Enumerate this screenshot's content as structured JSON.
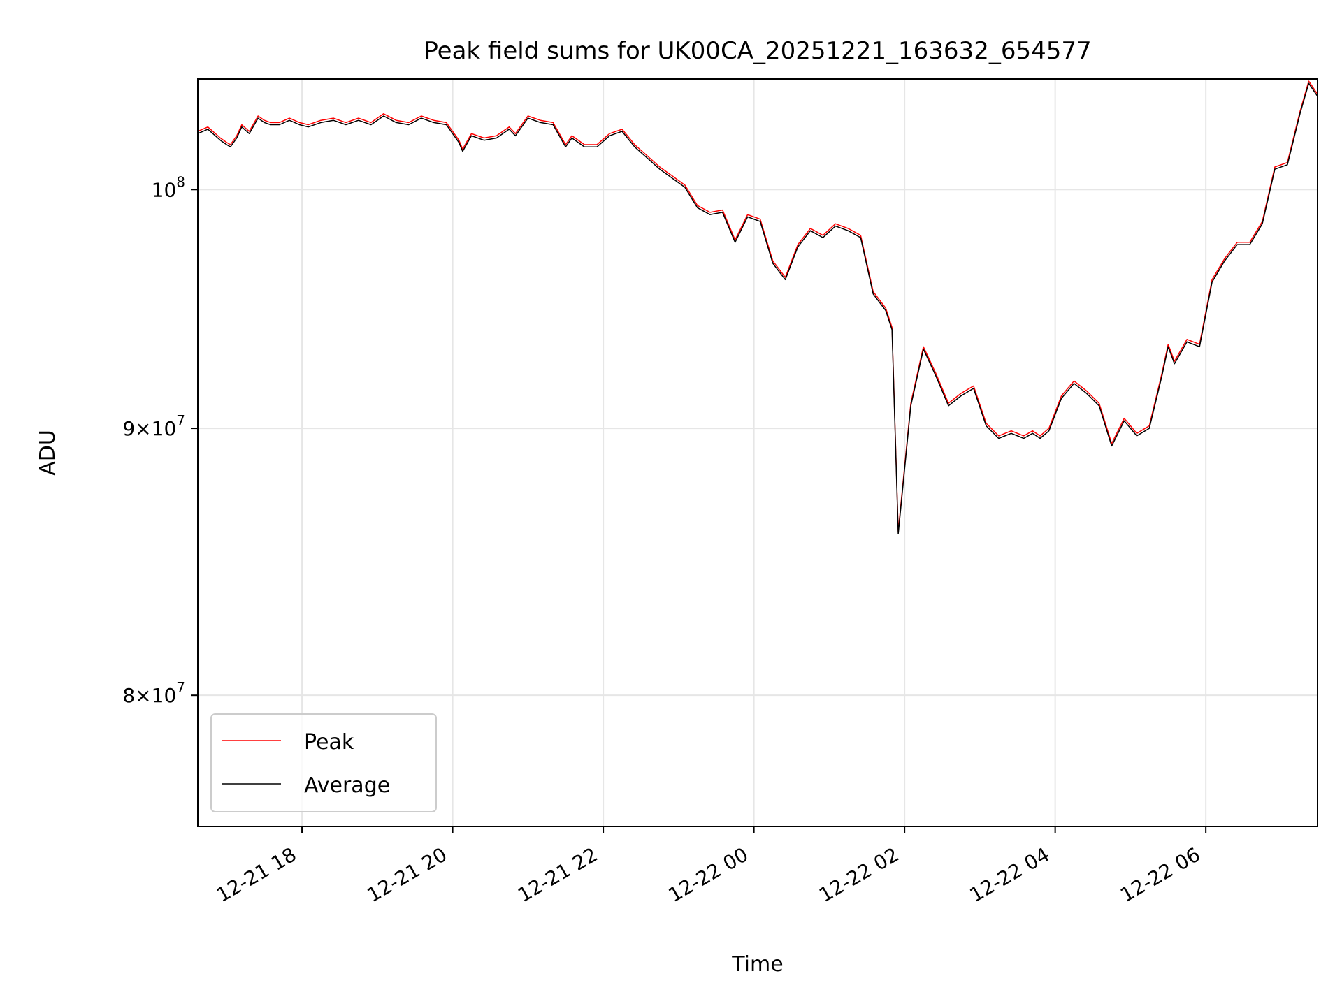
{
  "chart_data": {
    "type": "line",
    "title": "Peak field sums for UK00CA_20251221_163632_654577",
    "xlabel": "Time",
    "ylabel": "ADU",
    "y_scale": "log",
    "grid": true,
    "legend_position": "lower-left",
    "xlim": [
      "2025-12-21 16:37",
      "2025-12-22 07:29"
    ],
    "ylim": [
      75500000,
      105000000
    ],
    "x_ticks": [
      {
        "value": "2025-12-21 18:00",
        "label": "12-21 18"
      },
      {
        "value": "2025-12-21 20:00",
        "label": "12-21 20"
      },
      {
        "value": "2025-12-21 22:00",
        "label": "12-21 22"
      },
      {
        "value": "2025-12-22 00:00",
        "label": "12-22 00"
      },
      {
        "value": "2025-12-22 02:00",
        "label": "12-22 02"
      },
      {
        "value": "2025-12-22 04:00",
        "label": "12-22 04"
      },
      {
        "value": "2025-12-22 06:00",
        "label": "12-22 06"
      }
    ],
    "y_ticks": [
      {
        "value": 80000000,
        "mantissa": "8",
        "base": "10",
        "exponent": "7"
      },
      {
        "value": 90000000,
        "mantissa": "9",
        "base": "10",
        "exponent": "7"
      },
      {
        "value": 100000000,
        "mantissa": "",
        "base": "10",
        "exponent": "8"
      }
    ],
    "series": [
      {
        "name": "Peak",
        "color": "#ff0000",
        "x": [
          "2025-12-21 16:37",
          "2025-12-21 16:45",
          "2025-12-21 16:55",
          "2025-12-21 17:00",
          "2025-12-21 17:03",
          "2025-12-21 17:08",
          "2025-12-21 17:12",
          "2025-12-21 17:18",
          "2025-12-21 17:25",
          "2025-12-21 17:30",
          "2025-12-21 17:35",
          "2025-12-21 17:42",
          "2025-12-21 17:50",
          "2025-12-21 17:58",
          "2025-12-21 18:05",
          "2025-12-21 18:15",
          "2025-12-21 18:25",
          "2025-12-21 18:35",
          "2025-12-21 18:45",
          "2025-12-21 18:55",
          "2025-12-21 19:05",
          "2025-12-21 19:15",
          "2025-12-21 19:25",
          "2025-12-21 19:35",
          "2025-12-21 19:45",
          "2025-12-21 19:55",
          "2025-12-21 20:05",
          "2025-12-21 20:08",
          "2025-12-21 20:15",
          "2025-12-21 20:25",
          "2025-12-21 20:35",
          "2025-12-21 20:45",
          "2025-12-21 20:50",
          "2025-12-21 21:00",
          "2025-12-21 21:10",
          "2025-12-21 21:20",
          "2025-12-21 21:30",
          "2025-12-21 21:35",
          "2025-12-21 21:45",
          "2025-12-21 21:55",
          "2025-12-21 22:05",
          "2025-12-21 22:15",
          "2025-12-21 22:25",
          "2025-12-21 22:35",
          "2025-12-21 22:45",
          "2025-12-21 22:55",
          "2025-12-21 23:05",
          "2025-12-21 23:15",
          "2025-12-21 23:25",
          "2025-12-21 23:35",
          "2025-12-21 23:45",
          "2025-12-21 23:55",
          "2025-12-22 00:05",
          "2025-12-22 00:15",
          "2025-12-22 00:25",
          "2025-12-22 00:35",
          "2025-12-22 00:45",
          "2025-12-22 00:55",
          "2025-12-22 01:05",
          "2025-12-22 01:15",
          "2025-12-22 01:25",
          "2025-12-22 01:35",
          "2025-12-22 01:45",
          "2025-12-22 01:50",
          "2025-12-22 01:55",
          "2025-12-22 02:05",
          "2025-12-22 02:15",
          "2025-12-22 02:25",
          "2025-12-22 02:35",
          "2025-12-22 02:45",
          "2025-12-22 02:55",
          "2025-12-22 03:05",
          "2025-12-22 03:15",
          "2025-12-22 03:25",
          "2025-12-22 03:35",
          "2025-12-22 03:42",
          "2025-12-22 03:48",
          "2025-12-22 03:55",
          "2025-12-22 04:05",
          "2025-12-22 04:15",
          "2025-12-22 04:25",
          "2025-12-22 04:35",
          "2025-12-22 04:45",
          "2025-12-22 04:55",
          "2025-12-22 05:05",
          "2025-12-22 05:15",
          "2025-12-22 05:25",
          "2025-12-22 05:30",
          "2025-12-22 05:35",
          "2025-12-22 05:45",
          "2025-12-22 05:55",
          "2025-12-22 06:05",
          "2025-12-22 06:15",
          "2025-12-22 06:25",
          "2025-12-22 06:35",
          "2025-12-22 06:45",
          "2025-12-22 06:55",
          "2025-12-22 07:05",
          "2025-12-22 07:15",
          "2025-12-22 07:22",
          "2025-12-22 07:29"
        ],
        "values": [
          102600000,
          102800000,
          102300000,
          102100000,
          102000000,
          102400000,
          102900000,
          102600000,
          103300000,
          103100000,
          103000000,
          103000000,
          103200000,
          103000000,
          102900000,
          103100000,
          103200000,
          103000000,
          103200000,
          103000000,
          103400000,
          103100000,
          103000000,
          103300000,
          103100000,
          103000000,
          102200000,
          101800000,
          102500000,
          102300000,
          102400000,
          102800000,
          102500000,
          103300000,
          103100000,
          103000000,
          102000000,
          102400000,
          102000000,
          102000000,
          102500000,
          102700000,
          102000000,
          101500000,
          101000000,
          100600000,
          100200000,
          99300000,
          99000000,
          99100000,
          97800000,
          98900000,
          98700000,
          96900000,
          96200000,
          97600000,
          98300000,
          98000000,
          98500000,
          98300000,
          98000000,
          95600000,
          94900000,
          94100000,
          86000000,
          91000000,
          93300000,
          92200000,
          91000000,
          91400000,
          91700000,
          90200000,
          89700000,
          89900000,
          89700000,
          89900000,
          89700000,
          90000000,
          91300000,
          91900000,
          91500000,
          91000000,
          89400000,
          90400000,
          89800000,
          90100000,
          92200000,
          93400000,
          92700000,
          93600000,
          93400000,
          96100000,
          97000000,
          97700000,
          97700000,
          98600000,
          101000000,
          101200000,
          103500000,
          104900000,
          104300000
        ]
      },
      {
        "name": "Average",
        "color": "#000000",
        "x": [
          "2025-12-21 16:37",
          "2025-12-21 16:45",
          "2025-12-21 16:55",
          "2025-12-21 17:00",
          "2025-12-21 17:03",
          "2025-12-21 17:08",
          "2025-12-21 17:12",
          "2025-12-21 17:18",
          "2025-12-21 17:25",
          "2025-12-21 17:30",
          "2025-12-21 17:35",
          "2025-12-21 17:42",
          "2025-12-21 17:50",
          "2025-12-21 17:58",
          "2025-12-21 18:05",
          "2025-12-21 18:15",
          "2025-12-21 18:25",
          "2025-12-21 18:35",
          "2025-12-21 18:45",
          "2025-12-21 18:55",
          "2025-12-21 19:05",
          "2025-12-21 19:15",
          "2025-12-21 19:25",
          "2025-12-21 19:35",
          "2025-12-21 19:45",
          "2025-12-21 19:55",
          "2025-12-21 20:05",
          "2025-12-21 20:08",
          "2025-12-21 20:15",
          "2025-12-21 20:25",
          "2025-12-21 20:35",
          "2025-12-21 20:45",
          "2025-12-21 20:50",
          "2025-12-21 21:00",
          "2025-12-21 21:10",
          "2025-12-21 21:20",
          "2025-12-21 21:30",
          "2025-12-21 21:35",
          "2025-12-21 21:45",
          "2025-12-21 21:55",
          "2025-12-21 22:05",
          "2025-12-21 22:15",
          "2025-12-21 22:25",
          "2025-12-21 22:35",
          "2025-12-21 22:45",
          "2025-12-21 22:55",
          "2025-12-21 23:05",
          "2025-12-21 23:15",
          "2025-12-21 23:25",
          "2025-12-21 23:35",
          "2025-12-21 23:45",
          "2025-12-21 23:55",
          "2025-12-22 00:05",
          "2025-12-22 00:15",
          "2025-12-22 00:25",
          "2025-12-22 00:35",
          "2025-12-22 00:45",
          "2025-12-22 00:55",
          "2025-12-22 01:05",
          "2025-12-22 01:15",
          "2025-12-22 01:25",
          "2025-12-22 01:35",
          "2025-12-22 01:45",
          "2025-12-22 01:50",
          "2025-12-22 01:55",
          "2025-12-22 02:05",
          "2025-12-22 02:15",
          "2025-12-22 02:25",
          "2025-12-22 02:35",
          "2025-12-22 02:45",
          "2025-12-22 02:55",
          "2025-12-22 03:05",
          "2025-12-22 03:15",
          "2025-12-22 03:25",
          "2025-12-22 03:35",
          "2025-12-22 03:42",
          "2025-12-22 03:48",
          "2025-12-22 03:55",
          "2025-12-22 04:05",
          "2025-12-22 04:15",
          "2025-12-22 04:25",
          "2025-12-22 04:35",
          "2025-12-22 04:45",
          "2025-12-22 04:55",
          "2025-12-22 05:05",
          "2025-12-22 05:15",
          "2025-12-22 05:25",
          "2025-12-22 05:30",
          "2025-12-22 05:35",
          "2025-12-22 05:45",
          "2025-12-22 05:55",
          "2025-12-22 06:05",
          "2025-12-22 06:15",
          "2025-12-22 06:25",
          "2025-12-22 06:35",
          "2025-12-22 06:45",
          "2025-12-22 06:55",
          "2025-12-22 07:05",
          "2025-12-22 07:15",
          "2025-12-22 07:22",
          "2025-12-22 07:29"
        ],
        "values": [
          102500000,
          102700000,
          102200000,
          102000000,
          101900000,
          102300000,
          102800000,
          102500000,
          103200000,
          103000000,
          102900000,
          102900000,
          103100000,
          102900000,
          102800000,
          103000000,
          103100000,
          102900000,
          103100000,
          102900000,
          103300000,
          103000000,
          102900000,
          103200000,
          103000000,
          102900000,
          102100000,
          101700000,
          102400000,
          102200000,
          102300000,
          102700000,
          102400000,
          103200000,
          103000000,
          102900000,
          101900000,
          102300000,
          101900000,
          101900000,
          102400000,
          102600000,
          101900000,
          101400000,
          100900000,
          100500000,
          100100000,
          99200000,
          98900000,
          99000000,
          97700000,
          98800000,
          98600000,
          96800000,
          96100000,
          97500000,
          98200000,
          97900000,
          98400000,
          98200000,
          97900000,
          95500000,
          94800000,
          94000000,
          85900000,
          90900000,
          93200000,
          92100000,
          90900000,
          91300000,
          91600000,
          90100000,
          89600000,
          89800000,
          89600000,
          89800000,
          89600000,
          89900000,
          91200000,
          91800000,
          91400000,
          90900000,
          89300000,
          90300000,
          89700000,
          90000000,
          92100000,
          93300000,
          92600000,
          93500000,
          93300000,
          96000000,
          96900000,
          97600000,
          97600000,
          98500000,
          100900000,
          101100000,
          103400000,
          104800000,
          104200000
        ]
      }
    ]
  }
}
